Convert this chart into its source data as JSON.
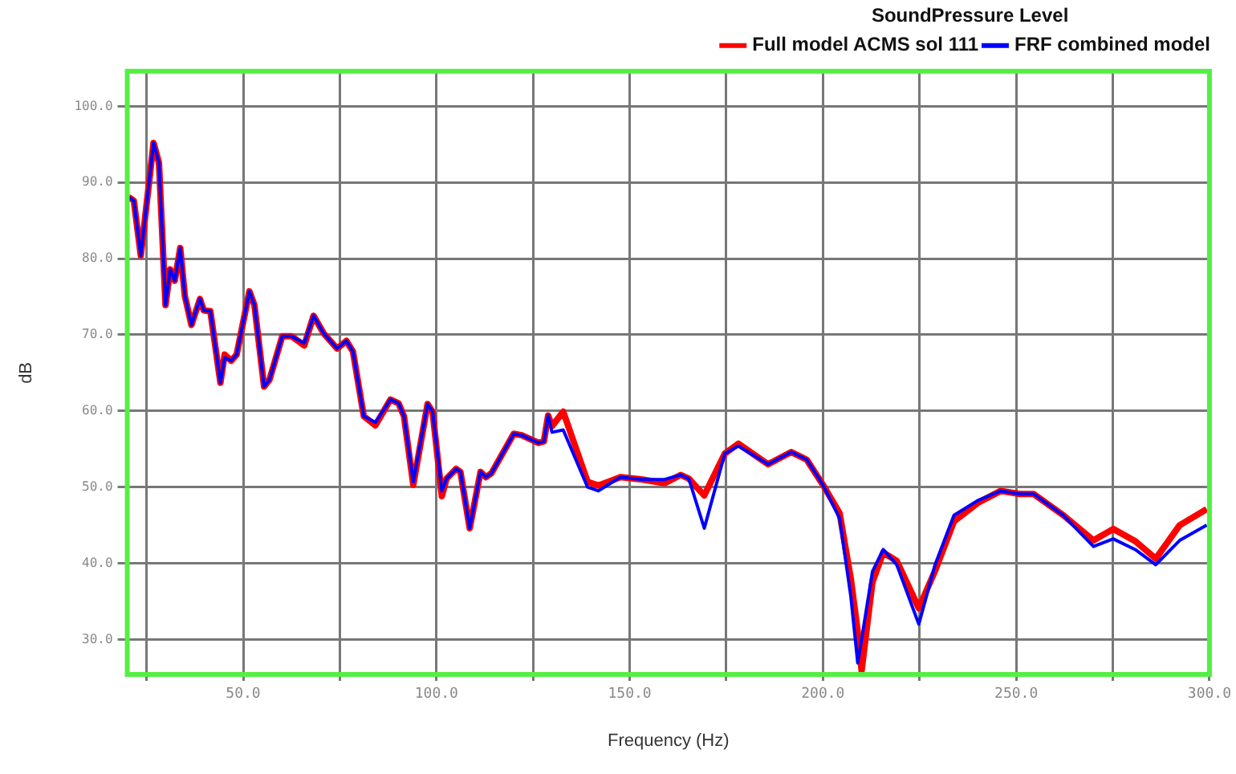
{
  "chart_data": {
    "type": "line",
    "xlabel": "Frequency (Hz)",
    "ylabel": "dB",
    "legend_title": "SoundPressure Level",
    "legend": "top right",
    "grid": true,
    "marker": "none",
    "line_style": "solid",
    "xlim": [
      20,
      300
    ],
    "ylim": [
      25.4,
      104.6
    ],
    "xticks": [
      {
        "value": 25,
        "label": null
      },
      {
        "value": 50,
        "label": "50.0"
      },
      {
        "value": 75,
        "label": null
      },
      {
        "value": 100,
        "label": "100.0"
      },
      {
        "value": 125,
        "label": null
      },
      {
        "value": 150,
        "label": "150.0"
      },
      {
        "value": 175,
        "label": null
      },
      {
        "value": 200,
        "label": "200.0"
      },
      {
        "value": 225,
        "label": null
      },
      {
        "value": 250,
        "label": "250.0"
      },
      {
        "value": 275,
        "label": null
      },
      {
        "value": 300,
        "label": "300.0"
      }
    ],
    "yticks": [
      {
        "value": 30,
        "label": "30.0"
      },
      {
        "value": 40,
        "label": "40.0"
      },
      {
        "value": 50,
        "label": "50.0"
      },
      {
        "value": 60,
        "label": "60.0"
      },
      {
        "value": 70,
        "label": "70.0"
      },
      {
        "value": 80,
        "label": "80.0"
      },
      {
        "value": 90,
        "label": "90.0"
      },
      {
        "value": 100,
        "label": "100.0"
      }
    ],
    "x": [
      20.3,
      21.7,
      23.5,
      26.8,
      28.2,
      29.9,
      31.1,
      32.3,
      33.7,
      34.9,
      36.6,
      38.8,
      39.8,
      41.5,
      44.1,
      45.2,
      46.9,
      48.3,
      51.6,
      52.9,
      55.4,
      56.8,
      60.1,
      62.5,
      65.8,
      68.2,
      70.8,
      74.3,
      76.7,
      78.4,
      81.2,
      84.2,
      88.1,
      90.2,
      91.6,
      94.0,
      97.7,
      99.0,
      101.4,
      102.6,
      105.1,
      106.2,
      108.6,
      111.4,
      112.8,
      114.2,
      120.0,
      122.1,
      126.4,
      127.8,
      128.9,
      129.9,
      132.8,
      139.1,
      141.9,
      147.6,
      153.3,
      159.0,
      163.2,
      165.3,
      169.3,
      174.6,
      178.1,
      185.8,
      191.8,
      195.8,
      200.0,
      204.3,
      207.2,
      209.0,
      210.0,
      212.8,
      215.6,
      219.1,
      224.8,
      229.0,
      233.9,
      240.3,
      246.0,
      250.9,
      254.5,
      262.2,
      270.0,
      275.1,
      280.8,
      286.1,
      292.3,
      299.3
    ],
    "series": [
      {
        "name": "Full model ACMS sol 111",
        "color": "#ff0000",
        "values": [
          88.1,
          87.6,
          80.4,
          95.2,
          92.6,
          73.9,
          78.6,
          77.1,
          81.4,
          75.1,
          71.3,
          74.7,
          73.2,
          73.1,
          63.7,
          67.4,
          66.6,
          67.4,
          75.7,
          73.9,
          63.2,
          64.1,
          69.8,
          69.8,
          68.6,
          72.5,
          70.2,
          68.2,
          69.2,
          67.8,
          59.3,
          58.1,
          61.5,
          61.0,
          59.3,
          50.3,
          60.9,
          59.9,
          48.8,
          51.1,
          52.4,
          52.0,
          44.6,
          52.0,
          51.3,
          51.8,
          57.0,
          56.8,
          55.8,
          56.0,
          59.4,
          58.0,
          59.9,
          50.7,
          50.2,
          51.3,
          51.0,
          50.5,
          51.6,
          51.1,
          48.9,
          54.4,
          55.7,
          53.0,
          54.6,
          53.6,
          50.3,
          46.6,
          38.0,
          31.0,
          25.9,
          37.5,
          41.4,
          40.3,
          34.1,
          39.0,
          45.5,
          48.0,
          49.5,
          49.1,
          49.1,
          46.3,
          43.0,
          44.5,
          42.9,
          40.6,
          45.0,
          47.1
        ]
      },
      {
        "name": "FRF combined model",
        "color": "#0000ff",
        "values": [
          88.1,
          87.6,
          80.4,
          95.2,
          92.6,
          73.9,
          78.6,
          77.1,
          81.4,
          75.1,
          71.3,
          74.7,
          73.2,
          73.1,
          63.7,
          67.0,
          66.6,
          67.4,
          75.7,
          73.9,
          63.2,
          64.1,
          69.8,
          69.8,
          68.9,
          72.5,
          70.2,
          68.2,
          69.2,
          67.8,
          59.3,
          58.5,
          61.5,
          61.0,
          59.3,
          50.7,
          60.9,
          59.9,
          49.5,
          51.1,
          52.4,
          52.0,
          44.6,
          52.0,
          51.3,
          51.8,
          57.0,
          56.8,
          55.8,
          56.0,
          59.4,
          57.2,
          57.5,
          50.0,
          49.5,
          51.3,
          51.0,
          51.0,
          51.6,
          51.1,
          44.6,
          54.4,
          55.4,
          53.0,
          54.6,
          53.6,
          50.3,
          45.9,
          35.7,
          26.9,
          30.0,
          38.9,
          41.8,
          39.8,
          32.0,
          39.8,
          46.3,
          48.3,
          49.5,
          49.1,
          49.1,
          46.3,
          42.2,
          43.2,
          41.8,
          39.8,
          43.0,
          45.0
        ]
      }
    ]
  }
}
